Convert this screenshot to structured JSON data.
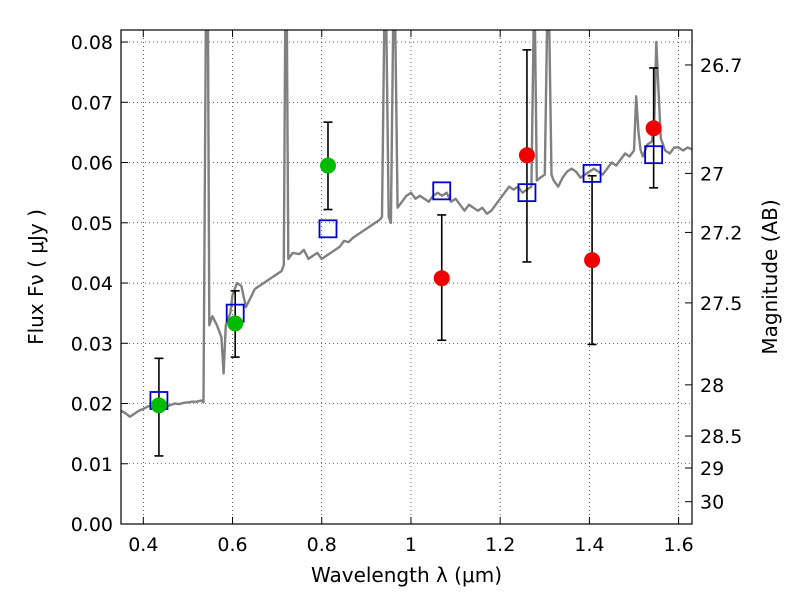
{
  "chart_data": {
    "type": "scatter",
    "title": "",
    "xlabel": "Wavelength  λ (μm)",
    "ylabel_left": "Flux  Fν  ( μJy )",
    "ylabel_right": "Magnitude (AB)",
    "xlim": [
      0.35,
      1.63
    ],
    "ylim": [
      0.0,
      0.082
    ],
    "grid": true,
    "grid_style": "dotted",
    "legend": "none",
    "x_ticks": [
      0.4,
      0.6,
      0.8,
      1.0,
      1.2,
      1.4,
      1.6
    ],
    "x_tick_labels": [
      "0.4",
      "0.6",
      "0.8",
      "1",
      "1.2",
      "1.4",
      "1.6"
    ],
    "y_ticks": [
      0.0,
      0.01,
      0.02,
      0.03,
      0.04,
      0.05,
      0.06,
      0.07,
      0.08
    ],
    "y_tick_labels": [
      "0.00",
      "0.01",
      "0.02",
      "0.03",
      "0.04",
      "0.05",
      "0.06",
      "0.07",
      "0.08"
    ],
    "right_ticks": [
      {
        "label": "26.7",
        "flux": 0.0762
      },
      {
        "label": "27",
        "flux": 0.0582
      },
      {
        "label": "27.2",
        "flux": 0.0484
      },
      {
        "label": "27.5",
        "flux": 0.0367
      },
      {
        "label": "28",
        "flux": 0.0231
      },
      {
        "label": "28.5",
        "flux": 0.0146
      },
      {
        "label": "29",
        "flux": 0.0093
      },
      {
        "label": "30",
        "flux": 0.0037
      }
    ],
    "colors": {
      "model_spectrum": "#808080",
      "green_points": "#00bb00",
      "red_points": "#ee0000",
      "model_photometry": "#0000cc",
      "error_bars": "#000000"
    },
    "series": [
      {
        "kind": "line",
        "points": [
          [
            0.35,
            0.0188
          ],
          [
            0.36,
            0.0184
          ],
          [
            0.37,
            0.0178
          ],
          [
            0.38,
            0.0183
          ],
          [
            0.39,
            0.0188
          ],
          [
            0.4,
            0.0191
          ],
          [
            0.41,
            0.0195
          ],
          [
            0.42,
            0.0197
          ],
          [
            0.43,
            0.0197
          ],
          [
            0.44,
            0.0196
          ],
          [
            0.45,
            0.0195
          ],
          [
            0.46,
            0.0197
          ],
          [
            0.47,
            0.02
          ],
          [
            0.48,
            0.0199
          ],
          [
            0.49,
            0.0201
          ],
          [
            0.5,
            0.0202
          ],
          [
            0.51,
            0.0203
          ],
          [
            0.52,
            0.0203
          ],
          [
            0.53,
            0.0205
          ],
          [
            0.535,
            0.0202
          ],
          [
            0.54,
            0.082
          ],
          [
            0.545,
            0.082
          ],
          [
            0.548,
            0.033
          ],
          [
            0.555,
            0.0345
          ],
          [
            0.565,
            0.033
          ],
          [
            0.575,
            0.031
          ],
          [
            0.58,
            0.025
          ],
          [
            0.585,
            0.033
          ],
          [
            0.595,
            0.035
          ],
          [
            0.6,
            0.038
          ],
          [
            0.61,
            0.04
          ],
          [
            0.62,
            0.0395
          ],
          [
            0.63,
            0.036
          ],
          [
            0.64,
            0.0375
          ],
          [
            0.65,
            0.039
          ],
          [
            0.66,
            0.0395
          ],
          [
            0.67,
            0.04
          ],
          [
            0.68,
            0.0405
          ],
          [
            0.69,
            0.041
          ],
          [
            0.7,
            0.0415
          ],
          [
            0.71,
            0.042
          ],
          [
            0.715,
            0.043
          ],
          [
            0.718,
            0.082
          ],
          [
            0.722,
            0.082
          ],
          [
            0.725,
            0.044
          ],
          [
            0.735,
            0.045
          ],
          [
            0.75,
            0.0448
          ],
          [
            0.76,
            0.0455
          ],
          [
            0.77,
            0.044
          ],
          [
            0.78,
            0.0445
          ],
          [
            0.79,
            0.045
          ],
          [
            0.8,
            0.044
          ],
          [
            0.81,
            0.0445
          ],
          [
            0.82,
            0.045
          ],
          [
            0.83,
            0.0455
          ],
          [
            0.84,
            0.046
          ],
          [
            0.85,
            0.047
          ],
          [
            0.86,
            0.0468
          ],
          [
            0.87,
            0.0475
          ],
          [
            0.88,
            0.048
          ],
          [
            0.89,
            0.0485
          ],
          [
            0.9,
            0.049
          ],
          [
            0.91,
            0.0495
          ],
          [
            0.92,
            0.05
          ],
          [
            0.93,
            0.0505
          ],
          [
            0.935,
            0.051
          ],
          [
            0.94,
            0.082
          ],
          [
            0.945,
            0.082
          ],
          [
            0.95,
            0.051
          ],
          [
            0.955,
            0.05
          ],
          [
            0.96,
            0.082
          ],
          [
            0.965,
            0.082
          ],
          [
            0.97,
            0.0525
          ],
          [
            0.98,
            0.0535
          ],
          [
            0.99,
            0.0545
          ],
          [
            1.0,
            0.055
          ],
          [
            1.01,
            0.054
          ],
          [
            1.02,
            0.0545
          ],
          [
            1.03,
            0.054
          ],
          [
            1.04,
            0.0535
          ],
          [
            1.05,
            0.0545
          ],
          [
            1.06,
            0.055
          ],
          [
            1.07,
            0.0545
          ],
          [
            1.08,
            0.055
          ],
          [
            1.09,
            0.0535
          ],
          [
            1.1,
            0.054
          ],
          [
            1.11,
            0.053
          ],
          [
            1.12,
            0.052
          ],
          [
            1.13,
            0.053
          ],
          [
            1.14,
            0.0525
          ],
          [
            1.15,
            0.052
          ],
          [
            1.16,
            0.0525
          ],
          [
            1.17,
            0.0515
          ],
          [
            1.18,
            0.052
          ],
          [
            1.19,
            0.053
          ],
          [
            1.2,
            0.054
          ],
          [
            1.21,
            0.055
          ],
          [
            1.22,
            0.056
          ],
          [
            1.23,
            0.0555
          ],
          [
            1.24,
            0.056
          ],
          [
            1.25,
            0.055
          ],
          [
            1.26,
            0.0555
          ],
          [
            1.27,
            0.056
          ],
          [
            1.275,
            0.082
          ],
          [
            1.278,
            0.082
          ],
          [
            1.282,
            0.057
          ],
          [
            1.29,
            0.0575
          ],
          [
            1.3,
            0.058
          ],
          [
            1.305,
            0.082
          ],
          [
            1.31,
            0.082
          ],
          [
            1.315,
            0.058
          ],
          [
            1.32,
            0.057
          ],
          [
            1.33,
            0.056
          ],
          [
            1.34,
            0.0575
          ],
          [
            1.35,
            0.0585
          ],
          [
            1.36,
            0.059
          ],
          [
            1.37,
            0.0585
          ],
          [
            1.38,
            0.0575
          ],
          [
            1.39,
            0.058
          ],
          [
            1.4,
            0.0585
          ],
          [
            1.41,
            0.059
          ],
          [
            1.42,
            0.0585
          ],
          [
            1.43,
            0.058
          ],
          [
            1.44,
            0.059
          ],
          [
            1.45,
            0.06
          ],
          [
            1.46,
            0.0595
          ],
          [
            1.47,
            0.0605
          ],
          [
            1.48,
            0.0615
          ],
          [
            1.49,
            0.061
          ],
          [
            1.5,
            0.062
          ],
          [
            1.505,
            0.071
          ],
          [
            1.51,
            0.065
          ],
          [
            1.515,
            0.062
          ],
          [
            1.52,
            0.061
          ],
          [
            1.525,
            0.062
          ],
          [
            1.53,
            0.063
          ],
          [
            1.54,
            0.0635
          ],
          [
            1.545,
            0.066
          ],
          [
            1.55,
            0.08
          ],
          [
            1.555,
            0.072
          ],
          [
            1.56,
            0.064
          ],
          [
            1.57,
            0.062
          ],
          [
            1.58,
            0.0615
          ],
          [
            1.59,
            0.0625
          ],
          [
            1.6,
            0.0625
          ],
          [
            1.61,
            0.062
          ],
          [
            1.62,
            0.0625
          ],
          [
            1.63,
            0.0622
          ]
        ]
      },
      {
        "kind": "errorbar",
        "marker": "circle",
        "color": "green",
        "points": [
          {
            "x": 0.435,
            "y": 0.0197,
            "ylow": 0.0113,
            "yhigh": 0.0275
          },
          {
            "x": 0.606,
            "y": 0.0333,
            "ylow": 0.0277,
            "yhigh": 0.0387
          },
          {
            "x": 0.814,
            "y": 0.0595,
            "ylow": 0.0522,
            "yhigh": 0.0667
          }
        ]
      },
      {
        "kind": "errorbar",
        "marker": "circle",
        "color": "red",
        "points": [
          {
            "x": 1.069,
            "y": 0.0408,
            "ylow": 0.0305,
            "yhigh": 0.0513
          },
          {
            "x": 1.26,
            "y": 0.0612,
            "ylow": 0.0435,
            "yhigh": 0.0787
          },
          {
            "x": 1.406,
            "y": 0.0438,
            "ylow": 0.0298,
            "yhigh": 0.0578
          },
          {
            "x": 1.544,
            "y": 0.0657,
            "ylow": 0.0558,
            "yhigh": 0.0757
          }
        ]
      },
      {
        "kind": "scatter",
        "marker": "square-open",
        "color": "blue",
        "points": [
          [
            0.435,
            0.0205
          ],
          [
            0.606,
            0.035
          ],
          [
            0.814,
            0.049
          ],
          [
            1.069,
            0.0553
          ],
          [
            1.26,
            0.055
          ],
          [
            1.406,
            0.0582
          ],
          [
            1.544,
            0.0613
          ]
        ]
      }
    ]
  }
}
